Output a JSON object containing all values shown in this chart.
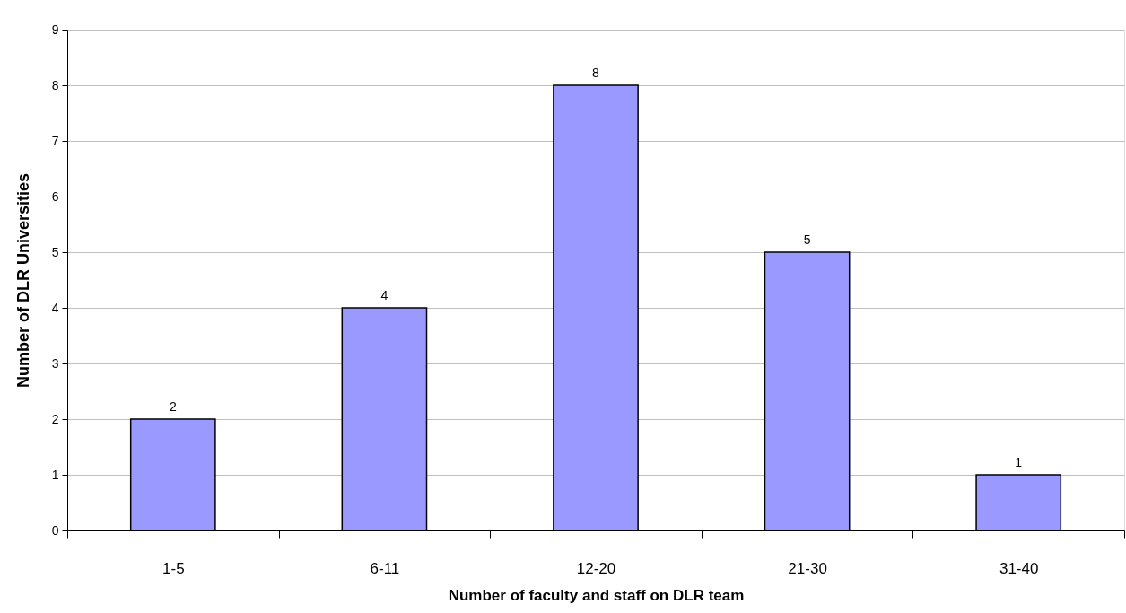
{
  "chart_data": {
    "type": "bar",
    "xlabel": "Number of faculty and staff on DLR team",
    "ylabel": "Number of DLR Universities",
    "categories": [
      "1-5",
      "6-11",
      "12-20",
      "21-30",
      "31-40"
    ],
    "values": [
      2,
      4,
      8,
      5,
      1
    ],
    "color": "#9999ff",
    "ylim": [
      0,
      9
    ],
    "yticks": [
      0,
      1,
      2,
      3,
      4,
      5,
      6,
      7,
      8,
      9
    ],
    "grid": "y",
    "data_labels": true
  }
}
